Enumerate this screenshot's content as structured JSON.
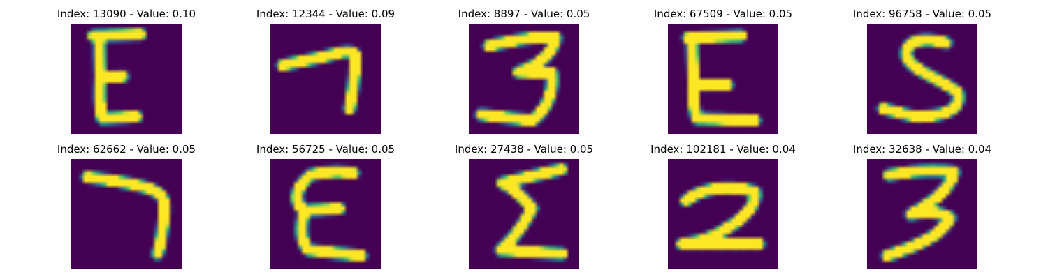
{
  "colors": {
    "background": "#440154",
    "ink_mid": "#21918c",
    "ink": "#fde725",
    "title": "#000000"
  },
  "panels": [
    {
      "title": "Index: 13090 - Value: 0.10",
      "glyph": "E"
    },
    {
      "title": "Index: 12344 - Value: 0.09",
      "glyph": "7"
    },
    {
      "title": "Index: 8897 - Value: 0.05",
      "glyph": "3"
    },
    {
      "title": "Index: 67509 - Value: 0.05",
      "glyph": "E"
    },
    {
      "title": "Index: 96758 - Value: 0.05",
      "glyph": "S"
    },
    {
      "title": "Index: 62662 - Value: 0.05",
      "glyph": "7"
    },
    {
      "title": "Index: 56725 - Value: 0.05",
      "glyph": "E"
    },
    {
      "title": "Index: 27438 - Value: 0.05",
      "glyph": "Σ"
    },
    {
      "title": "Index: 102181 - Value: 0.04",
      "glyph": "2"
    },
    {
      "title": "Index: 32638 - Value: 0.04",
      "glyph": "3"
    }
  ]
}
